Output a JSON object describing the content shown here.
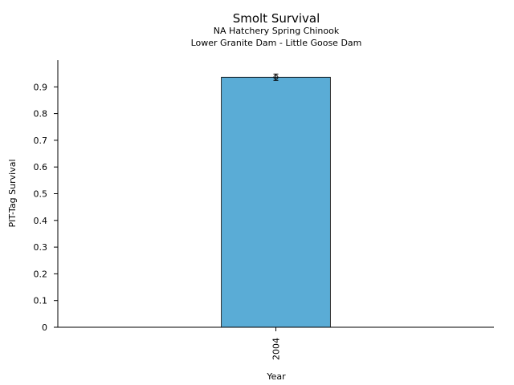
{
  "chart_data": {
    "type": "bar",
    "title": "Smolt Survival",
    "subtitle": [
      "NA Hatchery Spring Chinook",
      "Lower Granite Dam - Little Goose Dam"
    ],
    "xlabel": "Year",
    "ylabel": "PIT-Tag Survival",
    "categories": [
      "2004"
    ],
    "values": [
      0.936
    ],
    "error": [
      0.012
    ],
    "ylim": [
      0,
      1.0
    ],
    "yticks": [
      "0",
      "0.1",
      "0.2",
      "0.3",
      "0.4",
      "0.5",
      "0.6",
      "0.7",
      "0.8",
      "0.9"
    ],
    "grid": false,
    "bar_color": "#5aacd6"
  }
}
